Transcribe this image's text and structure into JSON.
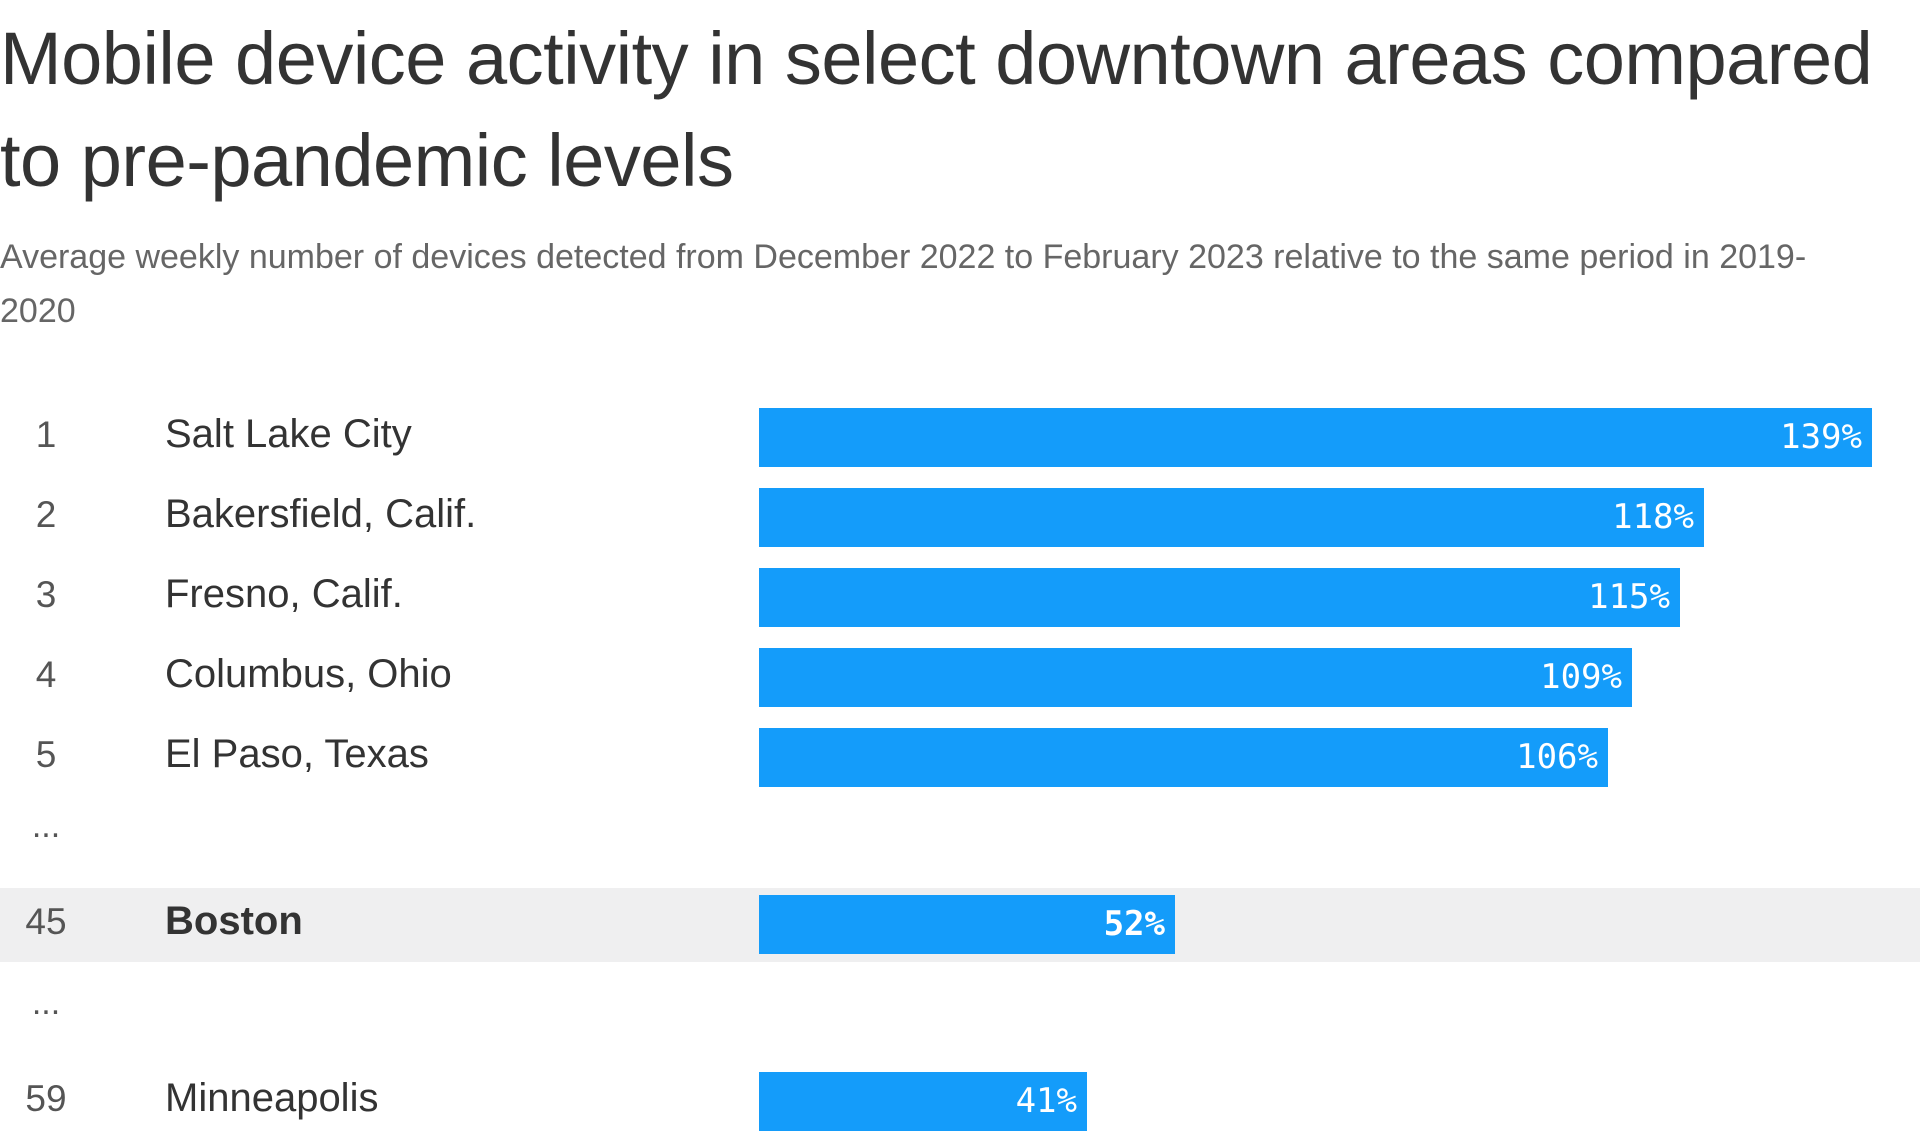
{
  "header": {
    "title": "Mobile device activity in select downtown areas compared to pre-pandemic levels",
    "subtitle": "Average weekly number of devices detected from December 2022 to February 2023 relative to the same period in 2019-2020"
  },
  "colors": {
    "bar": "#149cfa",
    "highlight_row": "#efeff0",
    "text": "#333333",
    "subtitle": "#666666"
  },
  "chart_data": {
    "type": "bar",
    "orientation": "horizontal",
    "unit": "%",
    "rows": [
      {
        "rank": "1",
        "city": "Salt Lake City",
        "value": 139,
        "label": "139%"
      },
      {
        "rank": "2",
        "city": "Bakersfield, Calif.",
        "value": 118,
        "label": "118%"
      },
      {
        "rank": "3",
        "city": "Fresno, Calif.",
        "value": 115,
        "label": "115%"
      },
      {
        "rank": "4",
        "city": "Columbus, Ohio",
        "value": 109,
        "label": "109%"
      },
      {
        "rank": "5",
        "city": "El Paso, Texas",
        "value": 106,
        "label": "106%"
      },
      {
        "gap": true,
        "text": "..."
      },
      {
        "rank": "45",
        "city": "Boston",
        "value": 52,
        "label": "52%",
        "highlight": true
      },
      {
        "gap": true,
        "text": "..."
      },
      {
        "rank": "59",
        "city": "Minneapolis",
        "value": 41,
        "label": "41%"
      }
    ],
    "value_max": 139
  }
}
